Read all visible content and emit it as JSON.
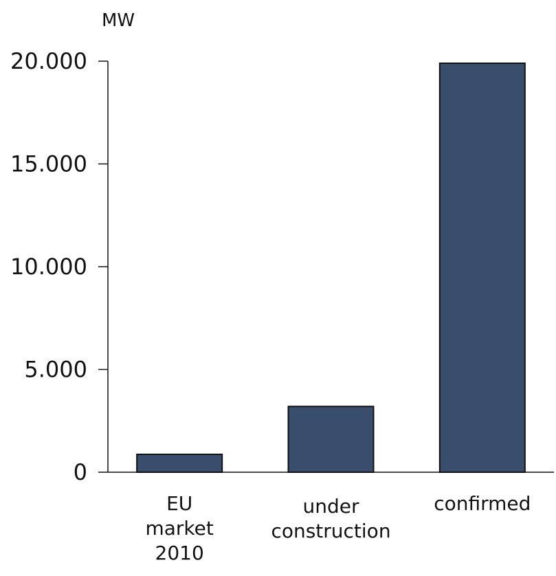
{
  "chart_data": {
    "type": "bar",
    "ylabel": "MW",
    "categories": [
      [
        "EU",
        "market",
        "2010"
      ],
      [
        "under",
        "construction"
      ],
      [
        "confirmed"
      ]
    ],
    "values": [
      870,
      3200,
      19900
    ],
    "yticks": [
      {
        "value": 0,
        "label": "0"
      },
      {
        "value": 5000,
        "label": "5.000"
      },
      {
        "value": 10000,
        "label": "10.000"
      },
      {
        "value": 15000,
        "label": "15.000"
      },
      {
        "value": 20000,
        "label": "20.000"
      }
    ],
    "ylim": [
      0,
      20000
    ],
    "bar_color": "#394d6d",
    "grid": false,
    "legend": "none"
  }
}
